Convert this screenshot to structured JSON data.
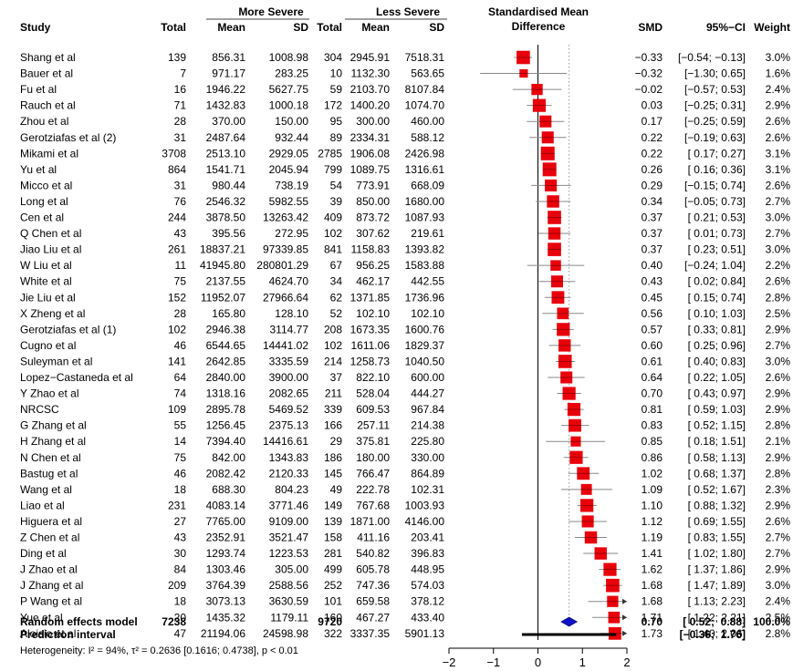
{
  "chart_data": {
    "type": "forest",
    "x_axis": {
      "range": [
        -2,
        2
      ],
      "ticks": [
        "−2",
        "−1",
        "0",
        "1",
        "2"
      ],
      "tick_values": [
        -2,
        -1,
        0,
        1,
        2
      ]
    },
    "headers": {
      "more_severe": "More Severe",
      "less_severe": "Less Severe",
      "plot_title_line1": "Standardised Mean",
      "plot_title_line2": "Difference",
      "study": "Study",
      "total_1": "Total",
      "mean_1": "Mean",
      "sd_1": "SD",
      "total_2": "Total",
      "mean_2": "Mean",
      "sd_2": "SD",
      "smd": "SMD",
      "ci": "95%−CI",
      "weight": "Weight"
    },
    "studies": [
      {
        "study": "Shang et al",
        "total_1": "139",
        "mean_1": "856.31",
        "sd_1": "1008.98",
        "total_2": "304",
        "mean_2": "2945.91",
        "sd_2": "7518.31",
        "smd": -0.33,
        "lo": -0.54,
        "hi": -0.13,
        "smd_text": "−0.33",
        "ci_text": "[−0.54; −0.13]",
        "weight": "3.0%"
      },
      {
        "study": "Bauer et al",
        "total_1": "7",
        "mean_1": "971.17",
        "sd_1": "283.25",
        "total_2": "10",
        "mean_2": "1132.30",
        "sd_2": "563.65",
        "smd": -0.32,
        "lo": -1.3,
        "hi": 0.65,
        "smd_text": "−0.32",
        "ci_text": "[−1.30;  0.65]",
        "weight": "1.6%"
      },
      {
        "study": "Fu et al",
        "total_1": "16",
        "mean_1": "1946.22",
        "sd_1": "5627.75",
        "total_2": "59",
        "mean_2": "2103.70",
        "sd_2": "8107.84",
        "smd": -0.02,
        "lo": -0.57,
        "hi": 0.53,
        "smd_text": "−0.02",
        "ci_text": "[−0.57;  0.53]",
        "weight": "2.4%"
      },
      {
        "study": "Rauch et al",
        "total_1": "71",
        "mean_1": "1432.83",
        "sd_1": "1000.18",
        "total_2": "172",
        "mean_2": "1400.20",
        "sd_2": "1074.70",
        "smd": 0.03,
        "lo": -0.25,
        "hi": 0.31,
        "smd_text": "0.03",
        "ci_text": "[−0.25;  0.31]",
        "weight": "2.9%"
      },
      {
        "study": "Zhou et al",
        "total_1": "28",
        "mean_1": "370.00",
        "sd_1": "150.00",
        "total_2": "95",
        "mean_2": "300.00",
        "sd_2": "460.00",
        "smd": 0.17,
        "lo": -0.25,
        "hi": 0.59,
        "smd_text": "0.17",
        "ci_text": "[−0.25;  0.59]",
        "weight": "2.6%"
      },
      {
        "study": "Gerotziafas et al (2)",
        "total_1": "31",
        "mean_1": "2487.64",
        "sd_1": "932.44",
        "total_2": "89",
        "mean_2": "2334.31",
        "sd_2": "588.12",
        "smd": 0.22,
        "lo": -0.19,
        "hi": 0.63,
        "smd_text": "0.22",
        "ci_text": "[−0.19;  0.63]",
        "weight": "2.6%"
      },
      {
        "study": "Mikami et al",
        "total_1": "3708",
        "mean_1": "2513.10",
        "sd_1": "2929.05",
        "total_2": "2785",
        "mean_2": "1906.08",
        "sd_2": "2426.98",
        "smd": 0.22,
        "lo": 0.17,
        "hi": 0.27,
        "smd_text": "0.22",
        "ci_text": "[ 0.17;  0.27]",
        "weight": "3.1%"
      },
      {
        "study": "Yu et al",
        "total_1": "864",
        "mean_1": "1541.71",
        "sd_1": "2045.94",
        "total_2": "799",
        "mean_2": "1089.75",
        "sd_2": "1316.61",
        "smd": 0.26,
        "lo": 0.16,
        "hi": 0.36,
        "smd_text": "0.26",
        "ci_text": "[ 0.16;  0.36]",
        "weight": "3.1%"
      },
      {
        "study": "Micco et al",
        "total_1": "31",
        "mean_1": "980.44",
        "sd_1": "738.19",
        "total_2": "54",
        "mean_2": "773.91",
        "sd_2": "668.09",
        "smd": 0.29,
        "lo": -0.15,
        "hi": 0.74,
        "smd_text": "0.29",
        "ci_text": "[−0.15;  0.74]",
        "weight": "2.6%"
      },
      {
        "study": "Long et al",
        "total_1": "76",
        "mean_1": "2546.32",
        "sd_1": "5982.55",
        "total_2": "39",
        "mean_2": "850.00",
        "sd_2": "1680.00",
        "smd": 0.34,
        "lo": -0.05,
        "hi": 0.73,
        "smd_text": "0.34",
        "ci_text": "[−0.05;  0.73]",
        "weight": "2.7%"
      },
      {
        "study": "Cen et al",
        "total_1": "244",
        "mean_1": "3878.50",
        "sd_1": "13263.42",
        "total_2": "409",
        "mean_2": "873.72",
        "sd_2": "1087.93",
        "smd": 0.37,
        "lo": 0.21,
        "hi": 0.53,
        "smd_text": "0.37",
        "ci_text": "[ 0.21;  0.53]",
        "weight": "3.0%"
      },
      {
        "study": "Q Chen et al",
        "total_1": "43",
        "mean_1": "395.56",
        "sd_1": "272.95",
        "total_2": "102",
        "mean_2": "307.62",
        "sd_2": "219.61",
        "smd": 0.37,
        "lo": 0.01,
        "hi": 0.73,
        "smd_text": "0.37",
        "ci_text": "[ 0.01;  0.73]",
        "weight": "2.7%"
      },
      {
        "study": "Jiao Liu et al",
        "total_1": "261",
        "mean_1": "18837.21",
        "sd_1": "97339.85",
        "total_2": "841",
        "mean_2": "1158.83",
        "sd_2": "1393.82",
        "smd": 0.37,
        "lo": 0.23,
        "hi": 0.51,
        "smd_text": "0.37",
        "ci_text": "[ 0.23;  0.51]",
        "weight": "3.0%"
      },
      {
        "study": "W Liu et al",
        "total_1": "11",
        "mean_1": "41945.80",
        "sd_1": "280801.29",
        "total_2": "67",
        "mean_2": "956.25",
        "sd_2": "1583.88",
        "smd": 0.4,
        "lo": -0.24,
        "hi": 1.04,
        "smd_text": "0.40",
        "ci_text": "[−0.24;  1.04]",
        "weight": "2.2%"
      },
      {
        "study": "White et al",
        "total_1": "75",
        "mean_1": "2137.55",
        "sd_1": "4624.70",
        "total_2": "34",
        "mean_2": "462.17",
        "sd_2": "442.55",
        "smd": 0.43,
        "lo": 0.02,
        "hi": 0.84,
        "smd_text": "0.43",
        "ci_text": "[ 0.02;  0.84]",
        "weight": "2.6%"
      },
      {
        "study": "Jie Liu et al",
        "total_1": "152",
        "mean_1": "11952.07",
        "sd_1": "27966.64",
        "total_2": "62",
        "mean_2": "1371.85",
        "sd_2": "1736.96",
        "smd": 0.45,
        "lo": 0.15,
        "hi": 0.74,
        "smd_text": "0.45",
        "ci_text": "[ 0.15;  0.74]",
        "weight": "2.8%"
      },
      {
        "study": "X Zheng et al",
        "total_1": "28",
        "mean_1": "165.80",
        "sd_1": "128.10",
        "total_2": "52",
        "mean_2": "102.10",
        "sd_2": "102.10",
        "smd": 0.56,
        "lo": 0.1,
        "hi": 1.03,
        "smd_text": "0.56",
        "ci_text": "[ 0.10;  1.03]",
        "weight": "2.5%"
      },
      {
        "study": "Gerotziafas et al (1)",
        "total_1": "102",
        "mean_1": "2946.38",
        "sd_1": "3114.77",
        "total_2": "208",
        "mean_2": "1673.35",
        "sd_2": "1600.76",
        "smd": 0.57,
        "lo": 0.33,
        "hi": 0.81,
        "smd_text": "0.57",
        "ci_text": "[ 0.33;  0.81]",
        "weight": "2.9%"
      },
      {
        "study": "Cugno et al",
        "total_1": "46",
        "mean_1": "6544.65",
        "sd_1": "14441.02",
        "total_2": "102",
        "mean_2": "1611.06",
        "sd_2": "1829.37",
        "smd": 0.6,
        "lo": 0.25,
        "hi": 0.96,
        "smd_text": "0.60",
        "ci_text": "[ 0.25;  0.96]",
        "weight": "2.7%"
      },
      {
        "study": "Suleyman et al",
        "total_1": "141",
        "mean_1": "2642.85",
        "sd_1": "3335.59",
        "total_2": "214",
        "mean_2": "1258.73",
        "sd_2": "1040.50",
        "smd": 0.61,
        "lo": 0.4,
        "hi": 0.83,
        "smd_text": "0.61",
        "ci_text": "[ 0.40;  0.83]",
        "weight": "3.0%"
      },
      {
        "study": "Lopez−Castaneda et al",
        "total_1": "64",
        "mean_1": "2840.00",
        "sd_1": "3900.00",
        "total_2": "37",
        "mean_2": "822.10",
        "sd_2": "600.00",
        "smd": 0.64,
        "lo": 0.22,
        "hi": 1.05,
        "smd_text": "0.64",
        "ci_text": "[ 0.22;  1.05]",
        "weight": "2.6%"
      },
      {
        "study": "Y Zhao et al",
        "total_1": "74",
        "mean_1": "1318.16",
        "sd_1": "2082.65",
        "total_2": "211",
        "mean_2": "528.04",
        "sd_2": "444.27",
        "smd": 0.7,
        "lo": 0.43,
        "hi": 0.97,
        "smd_text": "0.70",
        "ci_text": "[ 0.43;  0.97]",
        "weight": "2.9%"
      },
      {
        "study": "NRCSC",
        "total_1": "109",
        "mean_1": "2895.78",
        "sd_1": "5469.52",
        "total_2": "339",
        "mean_2": "609.53",
        "sd_2": "967.84",
        "smd": 0.81,
        "lo": 0.59,
        "hi": 1.03,
        "smd_text": "0.81",
        "ci_text": "[ 0.59;  1.03]",
        "weight": "2.9%"
      },
      {
        "study": "G Zhang et al",
        "total_1": "55",
        "mean_1": "1256.45",
        "sd_1": "2375.13",
        "total_2": "166",
        "mean_2": "257.11",
        "sd_2": "214.38",
        "smd": 0.83,
        "lo": 0.52,
        "hi": 1.15,
        "smd_text": "0.83",
        "ci_text": "[ 0.52;  1.15]",
        "weight": "2.8%"
      },
      {
        "study": "H Zhang et al",
        "total_1": "14",
        "mean_1": "7394.40",
        "sd_1": "14416.61",
        "total_2": "29",
        "mean_2": "375.81",
        "sd_2": "225.80",
        "smd": 0.85,
        "lo": 0.18,
        "hi": 1.51,
        "smd_text": "0.85",
        "ci_text": "[ 0.18;  1.51]",
        "weight": "2.1%"
      },
      {
        "study": "N Chen et al",
        "total_1": "75",
        "mean_1": "842.00",
        "sd_1": "1343.83",
        "total_2": "186",
        "mean_2": "180.00",
        "sd_2": "330.00",
        "smd": 0.86,
        "lo": 0.58,
        "hi": 1.13,
        "smd_text": "0.86",
        "ci_text": "[ 0.58;  1.13]",
        "weight": "2.9%"
      },
      {
        "study": "Bastug et al",
        "total_1": "46",
        "mean_1": "2082.42",
        "sd_1": "2120.33",
        "total_2": "145",
        "mean_2": "766.47",
        "sd_2": "864.89",
        "smd": 1.02,
        "lo": 0.68,
        "hi": 1.37,
        "smd_text": "1.02",
        "ci_text": "[ 0.68;  1.37]",
        "weight": "2.8%"
      },
      {
        "study": "Wang et al",
        "total_1": "18",
        "mean_1": "688.30",
        "sd_1": "804.23",
        "total_2": "49",
        "mean_2": "222.78",
        "sd_2": "102.31",
        "smd": 1.09,
        "lo": 0.52,
        "hi": 1.67,
        "smd_text": "1.09",
        "ci_text": "[ 0.52;  1.67]",
        "weight": "2.3%"
      },
      {
        "study": "Liao et al",
        "total_1": "231",
        "mean_1": "4083.14",
        "sd_1": "3771.46",
        "total_2": "149",
        "mean_2": "767.68",
        "sd_2": "1003.93",
        "smd": 1.1,
        "lo": 0.88,
        "hi": 1.32,
        "smd_text": "1.10",
        "ci_text": "[ 0.88;  1.32]",
        "weight": "2.9%"
      },
      {
        "study": "Higuera et al",
        "total_1": "27",
        "mean_1": "7765.00",
        "sd_1": "9109.00",
        "total_2": "139",
        "mean_2": "1871.00",
        "sd_2": "4146.00",
        "smd": 1.12,
        "lo": 0.69,
        "hi": 1.55,
        "smd_text": "1.12",
        "ci_text": "[ 0.69;  1.55]",
        "weight": "2.6%"
      },
      {
        "study": "Z Chen et al",
        "total_1": "43",
        "mean_1": "2352.91",
        "sd_1": "3521.47",
        "total_2": "158",
        "mean_2": "411.16",
        "sd_2": "203.41",
        "smd": 1.19,
        "lo": 0.83,
        "hi": 1.55,
        "smd_text": "1.19",
        "ci_text": "[ 0.83;  1.55]",
        "weight": "2.7%"
      },
      {
        "study": "Ding et al",
        "total_1": "30",
        "mean_1": "1293.74",
        "sd_1": "1223.53",
        "total_2": "281",
        "mean_2": "540.82",
        "sd_2": "396.83",
        "smd": 1.41,
        "lo": 1.02,
        "hi": 1.8,
        "smd_text": "1.41",
        "ci_text": "[ 1.02;  1.80]",
        "weight": "2.7%"
      },
      {
        "study": "J Zhao et al",
        "total_1": "84",
        "mean_1": "1303.46",
        "sd_1": "305.00",
        "total_2": "499",
        "mean_2": "605.78",
        "sd_2": "448.95",
        "smd": 1.62,
        "lo": 1.37,
        "hi": 1.86,
        "smd_text": "1.62",
        "ci_text": "[ 1.37;  1.86]",
        "weight": "2.9%"
      },
      {
        "study": "J Zhang et al",
        "total_1": "209",
        "mean_1": "3764.39",
        "sd_1": "2588.56",
        "total_2": "252",
        "mean_2": "747.36",
        "sd_2": "574.03",
        "smd": 1.68,
        "lo": 1.47,
        "hi": 1.89,
        "smd_text": "1.68",
        "ci_text": "[ 1.47;  1.89]",
        "weight": "3.0%"
      },
      {
        "study": "P Wang et al",
        "total_1": "18",
        "mean_1": "3073.13",
        "sd_1": "3630.59",
        "total_2": "101",
        "mean_2": "659.58",
        "sd_2": "378.12",
        "smd": 1.68,
        "lo": 1.13,
        "hi": 2.23,
        "smd_text": "1.68",
        "ci_text": "[ 1.13;  2.23]",
        "weight": "2.4%"
      },
      {
        "study": "Yue et al",
        "total_1": "20",
        "mean_1": "1435.32",
        "sd_1": "1179.11",
        "total_2": "160",
        "mean_2": "467.27",
        "sd_2": "433.40",
        "smd": 1.71,
        "lo": 1.22,
        "hi": 2.21,
        "smd_text": "1.71",
        "ci_text": "[ 1.22;  2.21]",
        "weight": "2.5%"
      },
      {
        "study": "Aloisio et al",
        "total_1": "47",
        "mean_1": "21194.06",
        "sd_1": "24598.98",
        "total_2": "322",
        "mean_2": "3337.35",
        "sd_2": "5901.13",
        "smd": 1.73,
        "lo": 1.4,
        "hi": 2.06,
        "smd_text": "1.73",
        "ci_text": "[ 1.40;  2.06]",
        "weight": "2.8%"
      }
    ],
    "random_effects": {
      "label": "Random effects model",
      "total_1": "7238",
      "total_2": "9720",
      "smd": 0.7,
      "lo": 0.52,
      "hi": 0.88,
      "smd_text": "0.70",
      "ci_text": "[ 0.52;  0.88]",
      "weight": "100.0%"
    },
    "prediction_interval": {
      "label": "Prediction interval",
      "lo": -0.36,
      "hi": 1.76,
      "ci_text": "[−0.36;  1.76]"
    },
    "heterogeneity": "Heterogeneity: I² = 94%, τ² = 0.2636 [0.1616; 0.4738], p < 0.01",
    "colors": {
      "square": "#e8000b",
      "diamond": "#1010c8",
      "ci_line": "#888888",
      "axis": "#000000",
      "ref_dotted": "#999999"
    }
  }
}
